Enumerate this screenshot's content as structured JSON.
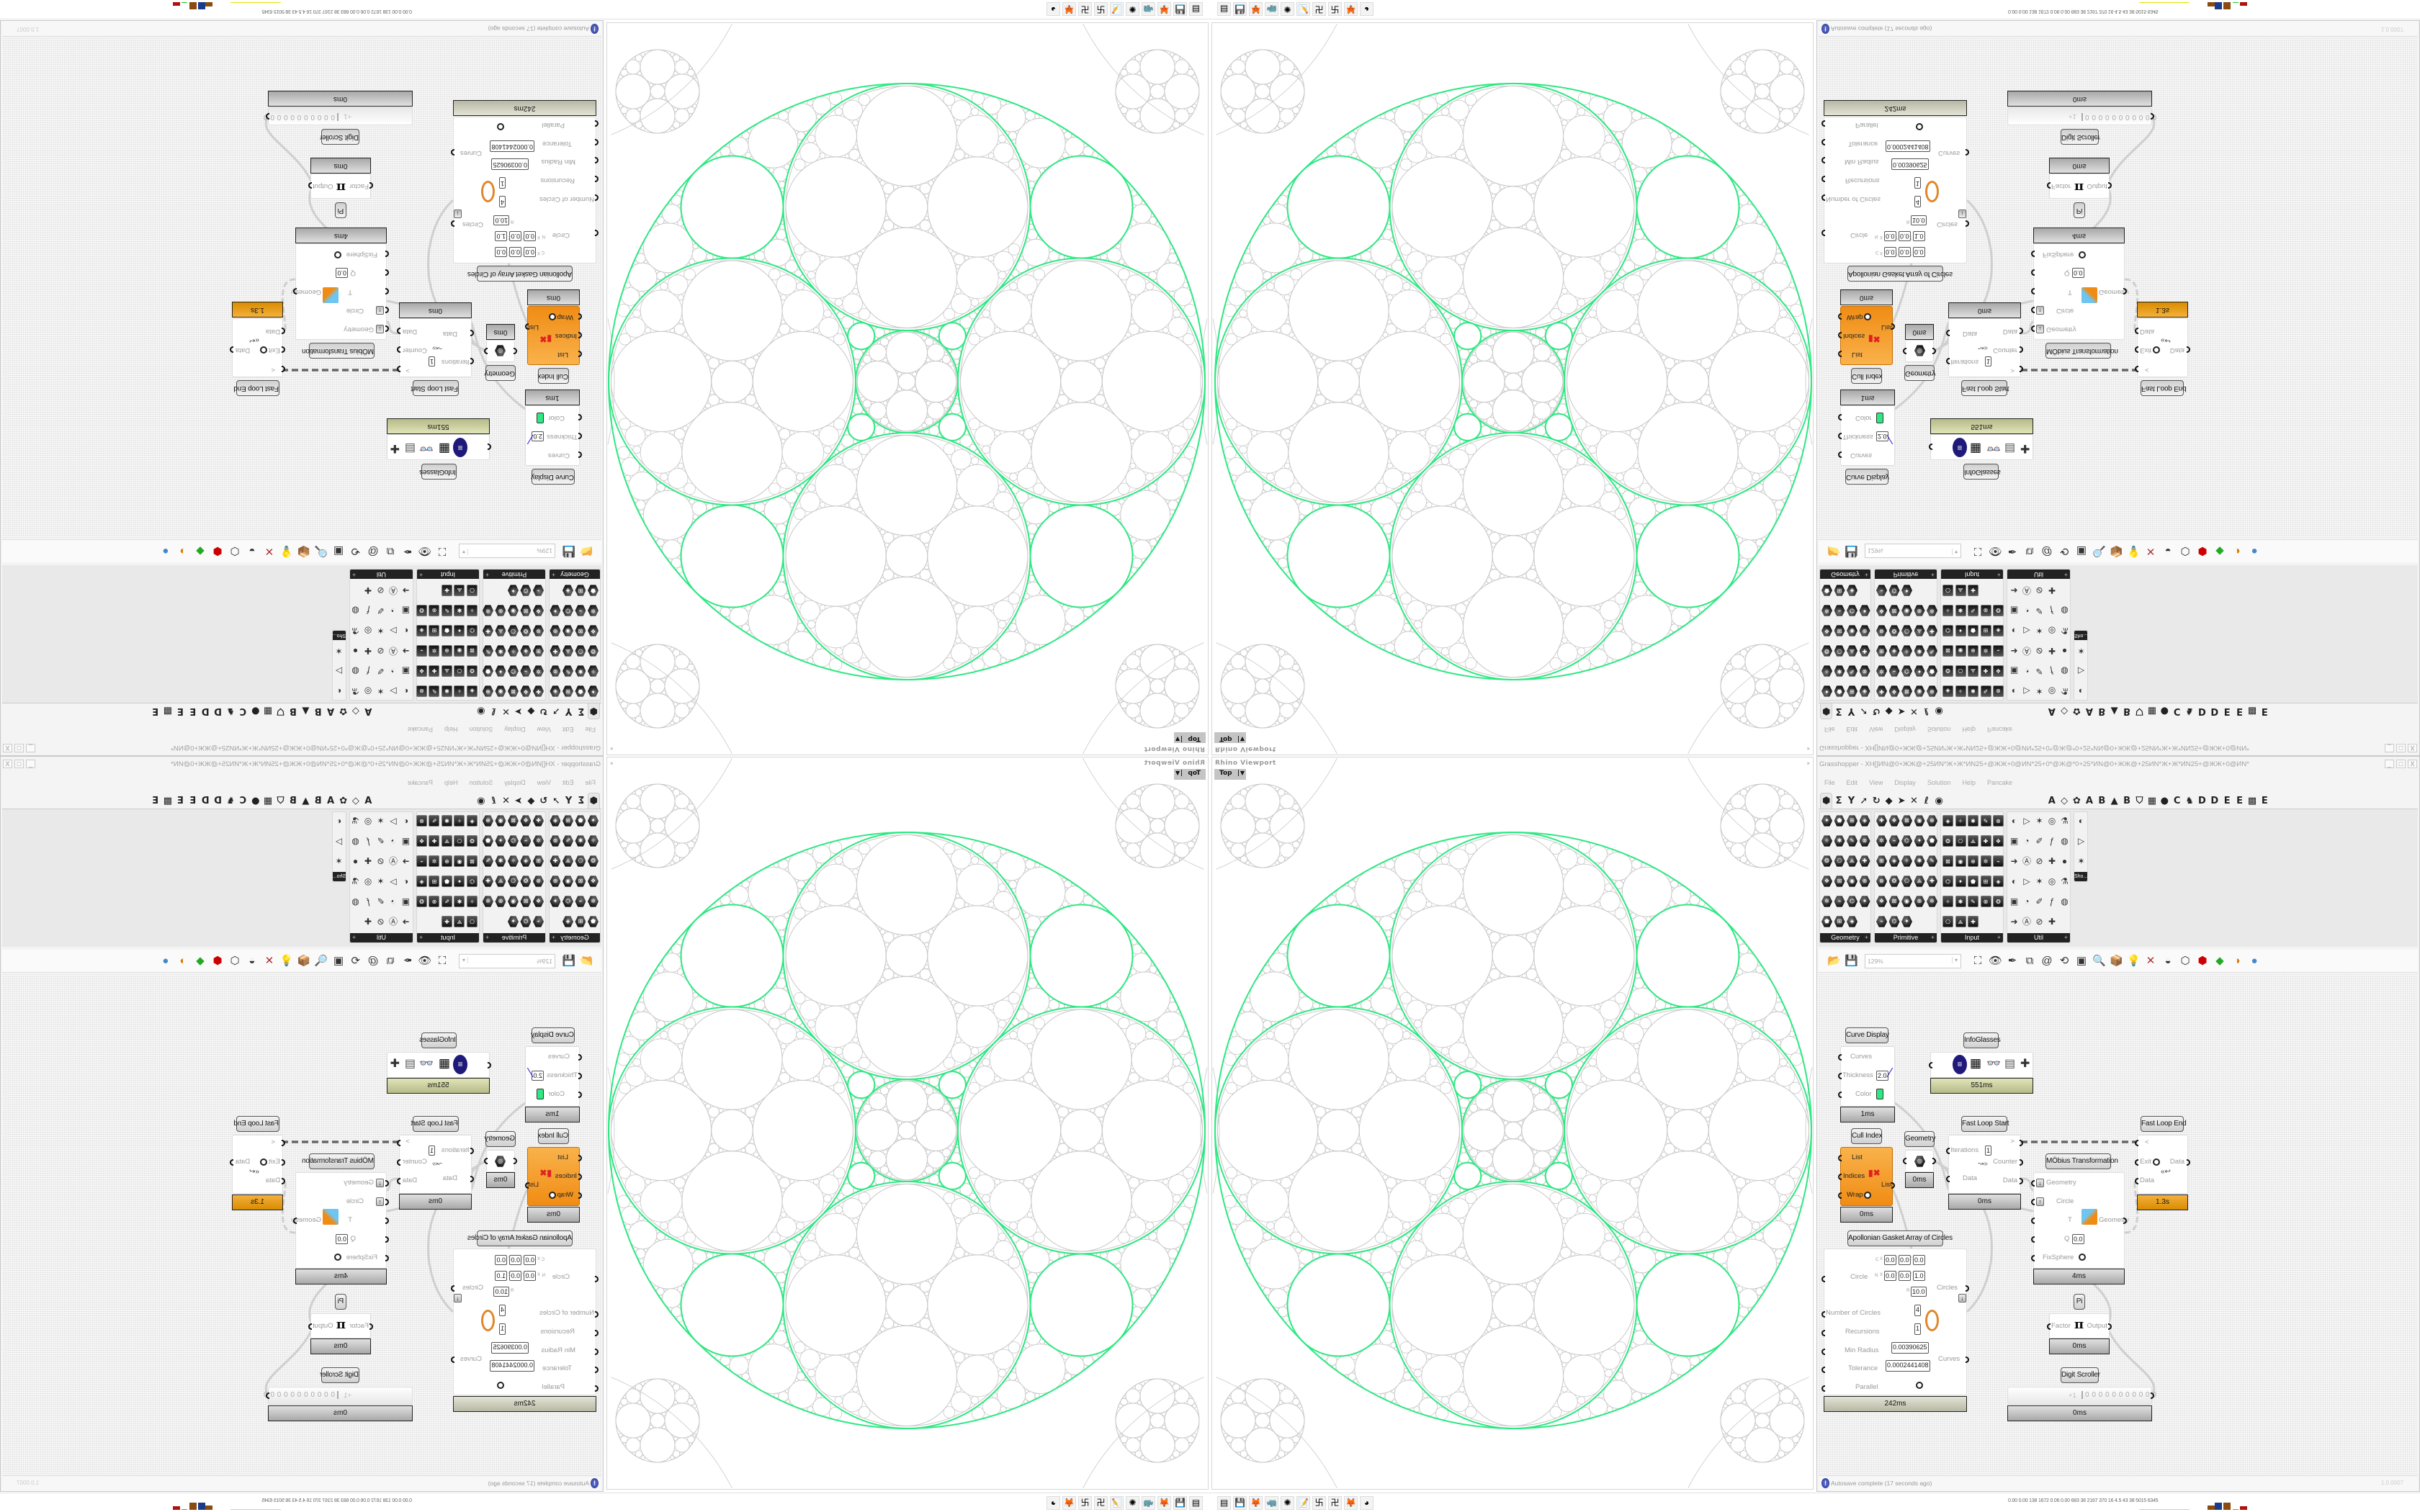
{
  "viewport": {
    "title": "Rhino Viewport",
    "view": "Top",
    "close": "×",
    "curve_color": "#2ee882",
    "gasket_gray": "#c8c8c8"
  },
  "window": {
    "title": "Grasshopper - XH[]ИN@0+ЖЖ@+25ИN*Ж+Ж*ИN25+@ЖЖ+0@ИN*25+0*@Ж@*0+25*ИN@0+ЖЖ@+25ИN*Ж+Ж*ИN25+@ЖЖ+0@ИN*",
    "buttons": [
      "_",
      "□",
      "X"
    ]
  },
  "menu": [
    "File",
    "Edit",
    "View",
    "Display",
    "Solution",
    "Help",
    "Pancake"
  ],
  "tabs": [
    "⬢",
    "Σ",
    "Y",
    "➚",
    "↻",
    "◆",
    "➤",
    "✕",
    "ℓ",
    "◉",
    "",
    "",
    "",
    "",
    "",
    "",
    "",
    "",
    "A",
    "◇",
    "✿",
    "A",
    "B",
    "▲",
    "B",
    "⛉",
    "▦",
    "●",
    "C",
    "♞",
    "D",
    "D",
    "E",
    "E",
    "▩",
    "E"
  ],
  "ribbon_panels": [
    {
      "label": "Geometry",
      "expand": "+"
    },
    {
      "label": "Primitive",
      "expand": "+"
    },
    {
      "label": "Input",
      "expand": "+"
    },
    {
      "label": "Util",
      "expand": "+"
    },
    {
      "label": "Sho..."
    }
  ],
  "canvas_toolbar": {
    "zoom": "129%",
    "icons": [
      "open-file",
      "save-file",
      "zoom-extents",
      "preview-eye",
      "sketch-pen",
      "bifocals",
      "metahopper",
      "gha-manager",
      "snapshot",
      "search",
      "package-manager",
      "bulb",
      "wire-display",
      "mesh-preview",
      "wire-preview",
      "shaded-preview",
      "shaded-green",
      "shaded-orange",
      "render-sphere"
    ]
  },
  "components": {
    "curve_display": {
      "title": "Curve Display",
      "inputs": [
        "Curves",
        "Thickness",
        "Color"
      ],
      "thickness": "2.0",
      "color": "#2ee882",
      "timer": "1ms"
    },
    "infoglasses": {
      "title": "InfoGlasses",
      "timer": "551ms"
    },
    "cull_index": {
      "title": "Cull Index",
      "inputs": [
        "List",
        "Indices",
        "Wrap"
      ],
      "output": "List",
      "timer": "0ms"
    },
    "geometry": {
      "title": "Geometry",
      "timer": "0ms"
    },
    "fast_loop_start": {
      "title": "Fast Loop Start",
      "inputs": [
        "Iterations",
        "Data"
      ],
      "iterations": "1",
      "outputs": [
        ">",
        "Counter",
        "Data"
      ],
      "timer": "0ms"
    },
    "mobius": {
      "title": "MÖbius Transformation",
      "inputs": [
        "Geometry",
        "Circle",
        "T",
        "Q",
        "FixSphere"
      ],
      "q": "0.0",
      "output": "Geometry",
      "timer": "4ms"
    },
    "fast_loop_end": {
      "title": "Fast Loop End",
      "inputs": [
        "<",
        "Exit",
        "Data"
      ],
      "output": "Data",
      "timer": "1.3s"
    },
    "apollonian": {
      "title": "Apollonian Gasket Array of Circles",
      "circle_label": "Circle",
      "c": {
        "label": "C",
        "x": "0.0",
        "y": "0.0",
        "z": "0.0"
      },
      "n": {
        "label": "N",
        "x": "0.0",
        "y": "0.0",
        "z": "1.0"
      },
      "r": {
        "label": "R",
        "value": "10.0"
      },
      "axes": [
        "X",
        "Y",
        "Z"
      ],
      "number_of_circles": {
        "label": "Number of Circles",
        "value": "4"
      },
      "recursions": {
        "label": "Recursions",
        "value": "1"
      },
      "min_radius": {
        "label": "Min Radius",
        "value": "0.00390625"
      },
      "tolerance": {
        "label": "Tolerance",
        "value": "0.0002441408"
      },
      "parallel": {
        "label": "Parallel"
      },
      "outputs": [
        "Circles",
        "Curves"
      ],
      "timer": "242ms"
    },
    "pi": {
      "title": "Pi",
      "input": "Factor",
      "symbol": "π",
      "output": "Output",
      "timer": "0ms"
    },
    "digit_scroller": {
      "title": "Digit Scroller",
      "sign": "+1",
      "digits": "0 0 0 0 0 0 0 0 0 0 0",
      "timer": "0ms"
    }
  },
  "status": {
    "message": "Autosave complete (17 seconds ago)",
    "version": "1.0.0007"
  },
  "taskbar": {
    "icons": [
      "task-manager",
      "save-64",
      "firefox",
      "rhino",
      "red-app",
      "notepad",
      "grasshopper-a",
      "grasshopper-b",
      "firefox-2",
      "purple-app"
    ],
    "stats": "0.00  0.00  138  1672 0.06  0.00  683   38   2167  370   16   4.5   43   38   5015 6345"
  }
}
